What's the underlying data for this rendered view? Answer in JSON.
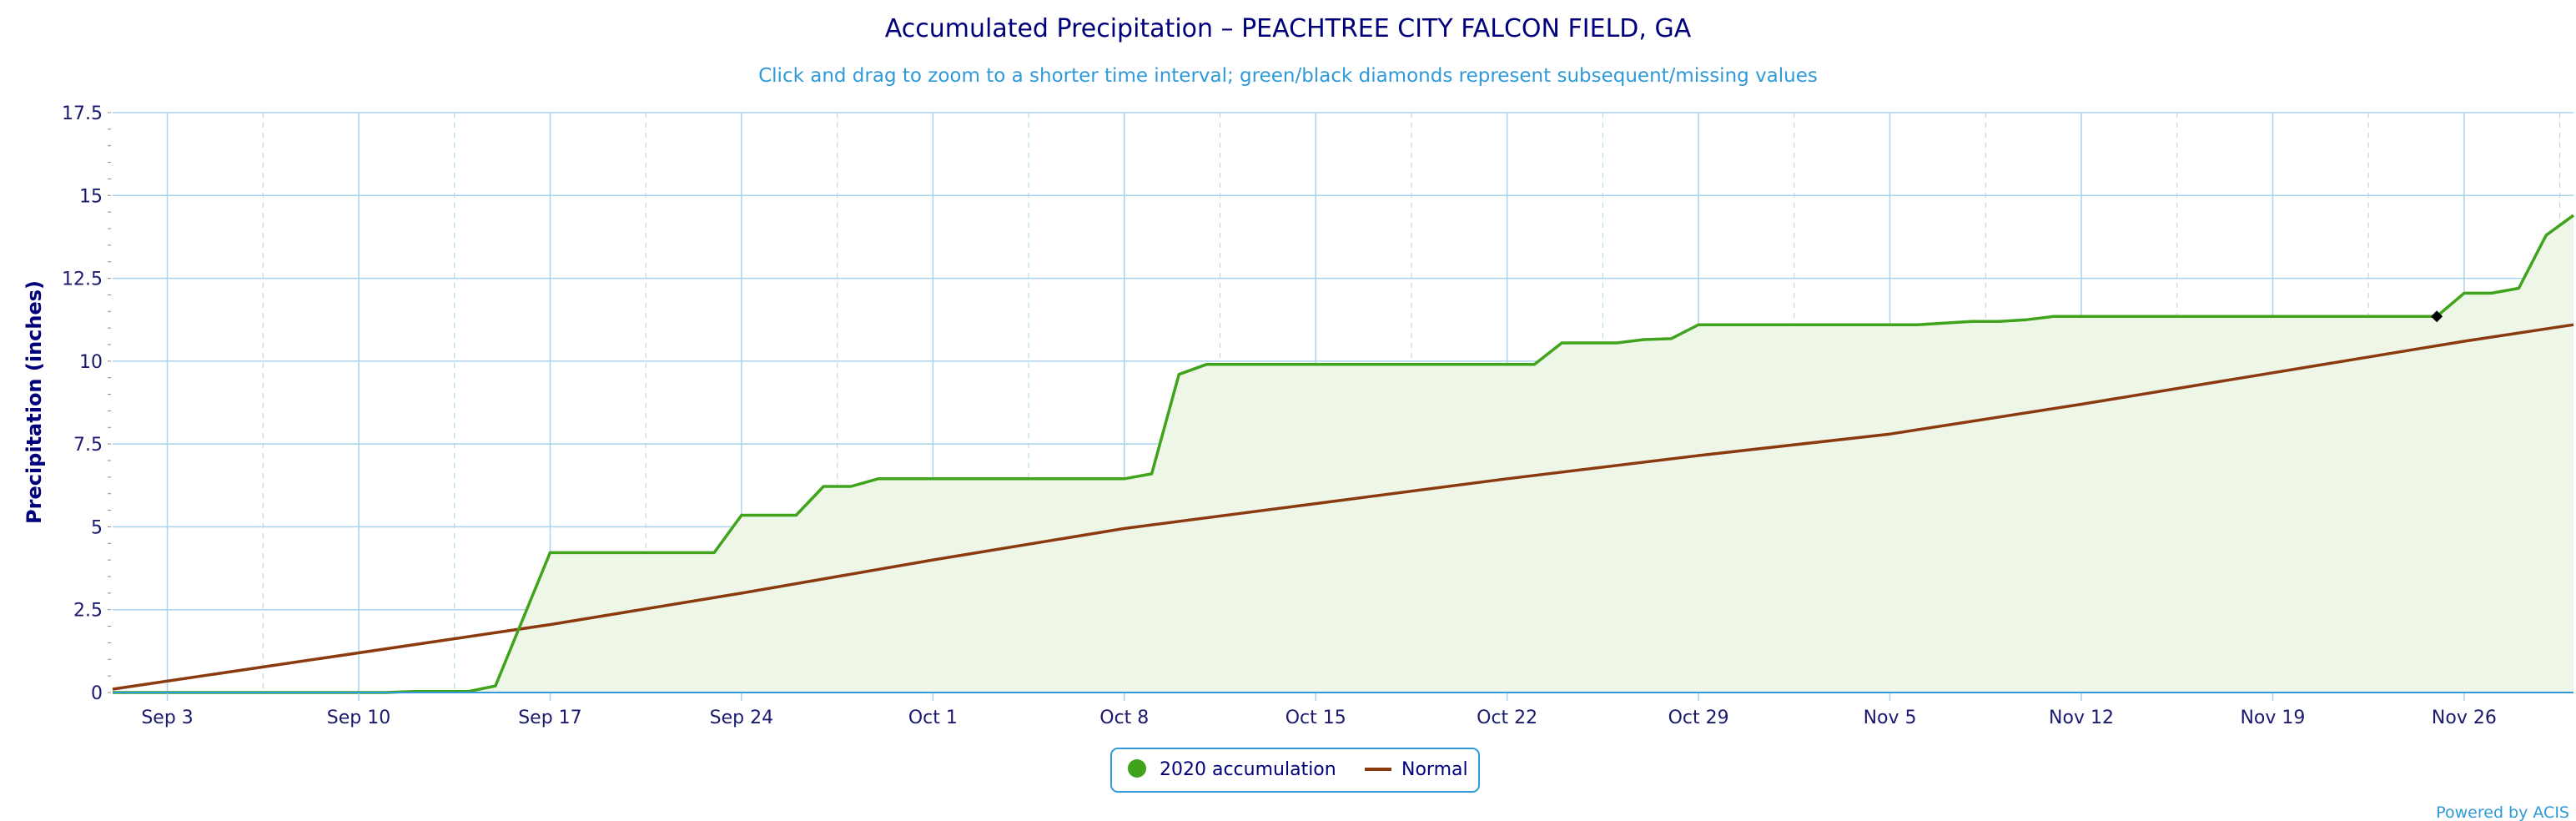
{
  "chart_data": {
    "type": "line",
    "title": "Accumulated Precipitation – PEACHTREE CITY FALCON FIELD, GA",
    "subtitle": "Click and drag to zoom to a shorter time interval; green/black diamonds represent subsequent/missing values",
    "ylabel": "Precipitation (inches)",
    "xlabel": "",
    "ylim": [
      0,
      17.5
    ],
    "yticks": [
      0,
      2.5,
      5,
      7.5,
      10,
      12.5,
      15,
      17.5
    ],
    "ytick_labels": [
      "0",
      "2.5",
      "5",
      "7.5",
      "10",
      "12.5",
      "15",
      "17.5"
    ],
    "xlim": [
      "2020-09-01",
      "2020-11-30"
    ],
    "xticks": [
      "2020-09-03",
      "2020-09-10",
      "2020-09-17",
      "2020-09-24",
      "2020-10-01",
      "2020-10-08",
      "2020-10-15",
      "2020-10-22",
      "2020-10-29",
      "2020-11-05",
      "2020-11-12",
      "2020-11-19",
      "2020-11-26"
    ],
    "xtick_labels": [
      "Sep 3",
      "Sep 10",
      "Sep 17",
      "Sep 24",
      "Oct 1",
      "Oct 8",
      "Oct 15",
      "Oct 22",
      "Oct 29",
      "Nov 5",
      "Nov 12",
      "Nov 19",
      "Nov 26"
    ],
    "grid": true,
    "legend_position": "bottom-center",
    "colors": {
      "accumulation": "#3fa31c",
      "accumulation_fill": "#eef6e8",
      "normal": "#8b3a0f",
      "grid": "#a8d3ec",
      "axis": "#2f9ad7",
      "missing_marker": "#000000"
    },
    "series": [
      {
        "name": "2020 accumulation",
        "points": [
          [
            "2020-09-01",
            0
          ],
          [
            "2020-09-11",
            0
          ],
          [
            "2020-09-12",
            0.03
          ],
          [
            "2020-09-14",
            0.03
          ],
          [
            "2020-09-15",
            0.2
          ],
          [
            "2020-09-17",
            4.22
          ],
          [
            "2020-09-23",
            4.22
          ],
          [
            "2020-09-24",
            5.35
          ],
          [
            "2020-09-26",
            5.35
          ],
          [
            "2020-09-27",
            6.22
          ],
          [
            "2020-09-28",
            6.22
          ],
          [
            "2020-09-29",
            6.45
          ],
          [
            "2020-10-08",
            6.45
          ],
          [
            "2020-10-09",
            6.6
          ],
          [
            "2020-10-10",
            9.6
          ],
          [
            "2020-10-11",
            9.9
          ],
          [
            "2020-10-23",
            9.9
          ],
          [
            "2020-10-24",
            10.55
          ],
          [
            "2020-10-26",
            10.55
          ],
          [
            "2020-10-27",
            10.65
          ],
          [
            "2020-10-28",
            10.68
          ],
          [
            "2020-10-29",
            11.1
          ],
          [
            "2020-11-06",
            11.1
          ],
          [
            "2020-11-08",
            11.2
          ],
          [
            "2020-11-09",
            11.2
          ],
          [
            "2020-11-10",
            11.25
          ],
          [
            "2020-11-11",
            11.35
          ],
          [
            "2020-11-25",
            11.35
          ],
          [
            "2020-11-26",
            12.05
          ],
          [
            "2020-11-27",
            12.05
          ],
          [
            "2020-11-28",
            12.2
          ],
          [
            "2020-11-29",
            13.8
          ],
          [
            "2020-11-30",
            14.4
          ]
        ],
        "missing_markers": [
          [
            "2020-11-25",
            11.35
          ]
        ]
      },
      {
        "name": "Normal",
        "points": [
          [
            "2020-09-01",
            0.1
          ],
          [
            "2020-09-17",
            2.05
          ],
          [
            "2020-09-24",
            3.0
          ],
          [
            "2020-10-01",
            4.0
          ],
          [
            "2020-10-08",
            4.95
          ],
          [
            "2020-10-15",
            5.7
          ],
          [
            "2020-10-22",
            6.45
          ],
          [
            "2020-10-29",
            7.15
          ],
          [
            "2020-11-05",
            7.8
          ],
          [
            "2020-11-12",
            8.7
          ],
          [
            "2020-11-19",
            9.65
          ],
          [
            "2020-11-26",
            10.6
          ],
          [
            "2020-11-30",
            11.1
          ]
        ]
      }
    ]
  },
  "legend": {
    "accumulation_label": "2020 accumulation",
    "normal_label": "Normal"
  },
  "credit": "Powered by ACIS"
}
